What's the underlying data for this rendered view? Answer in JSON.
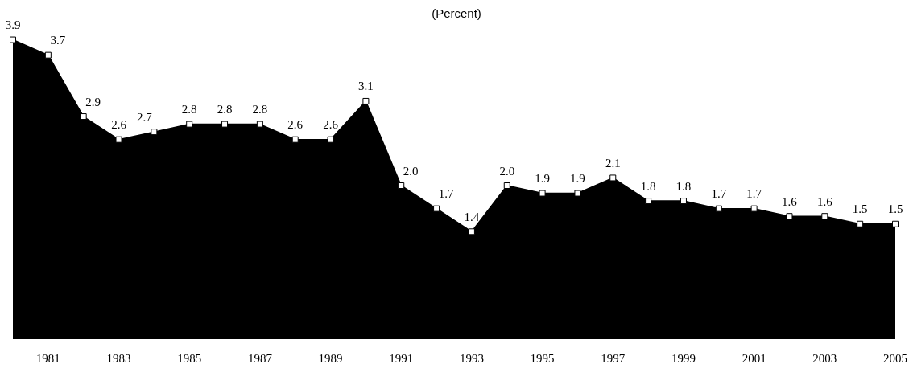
{
  "chart_data": {
    "type": "area",
    "title": "(Percent)",
    "categories": [
      null,
      "1981",
      null,
      "1983",
      null,
      "1985",
      null,
      "1987",
      null,
      "1989",
      null,
      "1991",
      null,
      "1993",
      null,
      "1995",
      null,
      "1997",
      null,
      "1999",
      null,
      "2001",
      null,
      "2003",
      null,
      "2005"
    ],
    "values": [
      3.9,
      3.7,
      2.9,
      2.6,
      2.7,
      2.8,
      2.8,
      2.8,
      2.6,
      2.6,
      3.1,
      2.0,
      1.7,
      1.4,
      2.0,
      1.9,
      1.9,
      2.1,
      1.8,
      1.8,
      1.7,
      1.7,
      1.6,
      1.6,
      1.5,
      1.5
    ],
    "value_labels": [
      "3.9",
      "3.7",
      "2.9",
      "2.6",
      "2.7",
      "2.8",
      "2.8",
      "2.8",
      "2.6",
      "2.6",
      "3.1",
      "2.0",
      "1.7",
      "1.4",
      "2.0",
      "1.9",
      "1.9",
      "2.1",
      "1.8",
      "1.8",
      "1.7",
      "1.7",
      "1.6",
      "1.6",
      "1.5",
      "1.5"
    ],
    "color": "#000000",
    "marker": "square",
    "grid": false
  }
}
